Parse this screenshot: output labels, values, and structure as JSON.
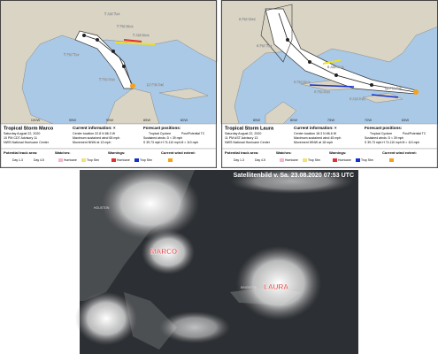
{
  "panels": [
    {
      "title": "Tropical Storm Marco",
      "date": "Saturday August 22, 2020",
      "advisory": "10 PM CDT Advisory 11",
      "center": "NWS National Hurricane Center",
      "current_info": "Current information: ×",
      "location": "Center location 22.8 N 86.3 W",
      "wind": "Maximum sustained wind 65 mph",
      "movement": "Movement NNW at 13 mph",
      "forecast_positions": "Forecast positions:",
      "tc": "Tropical Cyclone",
      "ptc": "Post/Potential TC",
      "sustained": "Sustained winds: D < 39 mph",
      "categories": "S 39-73 mph  H 74-110 mph  M > 110 mph",
      "legend": {
        "track": "Potential track area:",
        "day13": "Day 1-3",
        "day45": "Day 4-5",
        "watches": "Watches:",
        "hurricane_watch": "Hurricane",
        "ts_watch": "Trop Stm",
        "warnings": "Warnings:",
        "hurricane_warning": "Hurricane",
        "ts_warning": "Trop Stm",
        "wind": "Current wind extent:"
      },
      "map_labels": [
        "7 AM Tue",
        "7 PM Mon",
        "7 AM Mon",
        "7 PM Tue",
        "7 PM Sun",
        "10 PM Sat"
      ],
      "longitudes": [
        "100W",
        "95W",
        "90W",
        "85W",
        "80W"
      ]
    },
    {
      "title": "Tropical Storm Laura",
      "date": "Saturday August 22, 2020",
      "advisory": "11 PM AST Advisory 13",
      "center": "NWS National Hurricane Center",
      "current_info": "Current information: ×",
      "location": "Center location 18.3 N 66.6 W",
      "wind": "Maximum sustained wind 45 mph",
      "movement": "Movement WNW at 18 mph",
      "forecast_positions": "Forecast positions:",
      "tc": "Tropical Cyclone",
      "ptc": "Post/Potential TC",
      "sustained": "Sustained winds: D < 39 mph",
      "categories": "S 39-73 mph  H 74-110 mph  M > 110 mph",
      "legend": {
        "track": "Potential track area:",
        "day13": "Day 1-3",
        "day45": "Day 4-5",
        "watches": "Watches:",
        "hurricane_watch": "Hurricane",
        "ts_watch": "Trop Stm",
        "warnings": "Warnings:",
        "hurricane_warning": "Hurricane",
        "ts_warning": "Trop Stm",
        "wind": "Current wind extent:"
      },
      "map_labels": [
        "8 PM Wed",
        "8 PM Tue",
        "8 AM Mon",
        "8 PM Mon",
        "8 PM Sun",
        "8 AM Sun",
        "11 PM Sat"
      ],
      "longitudes": [
        "85W",
        "80W",
        "75W",
        "70W",
        "65W"
      ]
    }
  ],
  "satellite": {
    "title": "Satellitenbild v. Sa. 23.08.2020 07:53 UTC",
    "storms": [
      "MARCO",
      "LAURA"
    ],
    "places": [
      "HOUSTON",
      "KINGSTON"
    ]
  }
}
